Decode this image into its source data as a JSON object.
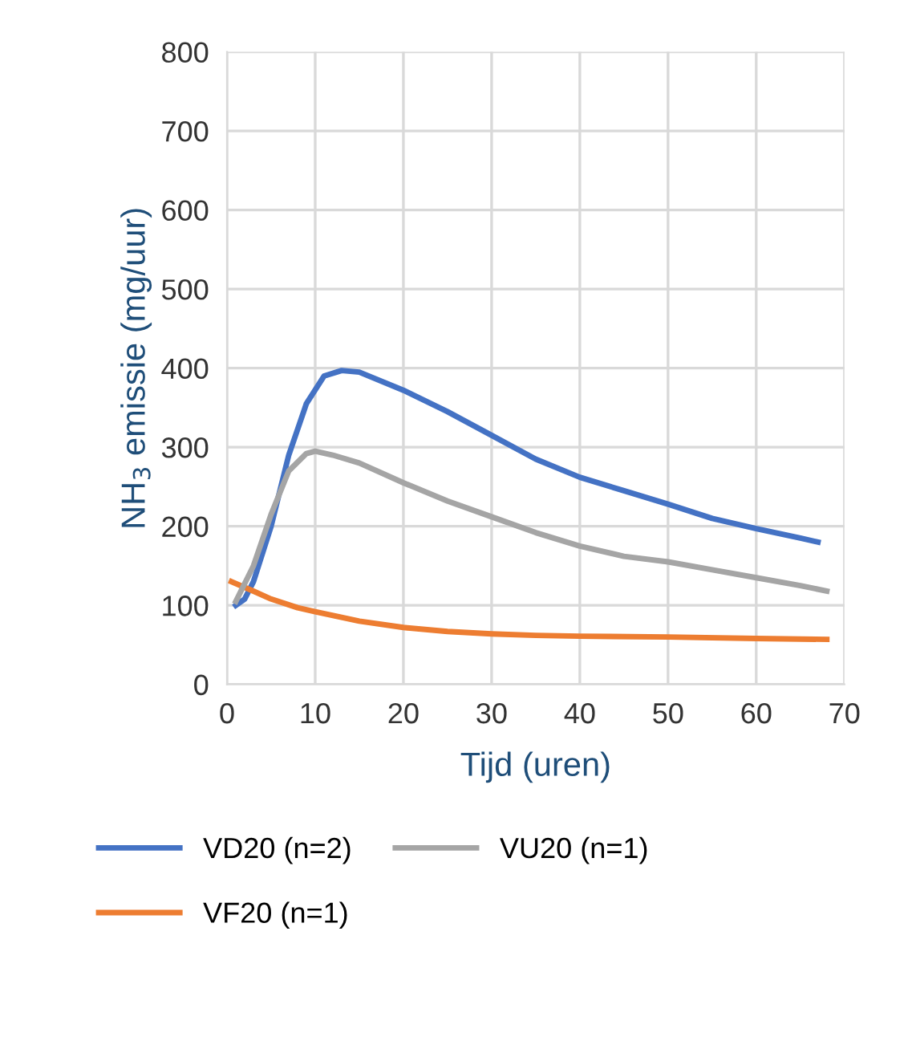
{
  "chart_data": {
    "type": "line",
    "xlabel": "Tijd (uren)",
    "ylabel": "NH$_{3}$ emissie (mg/uur)",
    "xlim": [
      0,
      70
    ],
    "xticks": [
      0,
      10,
      20,
      30,
      40,
      50,
      60,
      70
    ],
    "ylim": [
      0,
      800
    ],
    "yticks": [
      0,
      100,
      200,
      300,
      400,
      500,
      600,
      700,
      800
    ],
    "grid": true,
    "legend": "bottom",
    "marker": "none",
    "line_style": "solid",
    "series": [
      {
        "name": "VD20 (n=2)",
        "color": "#4472c4",
        "x": [
          1,
          2,
          3,
          5,
          7,
          9,
          11,
          13,
          15,
          20,
          25,
          30,
          35,
          40,
          45,
          50,
          55,
          60,
          65,
          67
        ],
        "values": [
          100,
          108,
          130,
          200,
          290,
          355,
          390,
          397,
          395,
          372,
          345,
          315,
          285,
          262,
          245,
          228,
          210,
          197,
          185,
          180
        ]
      },
      {
        "name": "VF20 (n=1)",
        "color": "#ed7d31",
        "x": [
          0.5,
          3,
          5,
          8,
          10,
          15,
          20,
          25,
          30,
          35,
          40,
          50,
          60,
          68
        ],
        "values": [
          130,
          118,
          108,
          97,
          92,
          80,
          72,
          67,
          64,
          62,
          61,
          60,
          58,
          57
        ]
      },
      {
        "name": "VU20 (n=1)",
        "color": "#a5a5a5",
        "x": [
          1,
          3,
          5,
          7,
          9,
          10,
          12,
          15,
          20,
          25,
          30,
          35,
          40,
          45,
          50,
          55,
          60,
          65,
          68
        ],
        "values": [
          105,
          150,
          215,
          270,
          292,
          295,
          290,
          280,
          255,
          232,
          212,
          192,
          175,
          162,
          155,
          145,
          135,
          125,
          118
        ]
      }
    ]
  }
}
